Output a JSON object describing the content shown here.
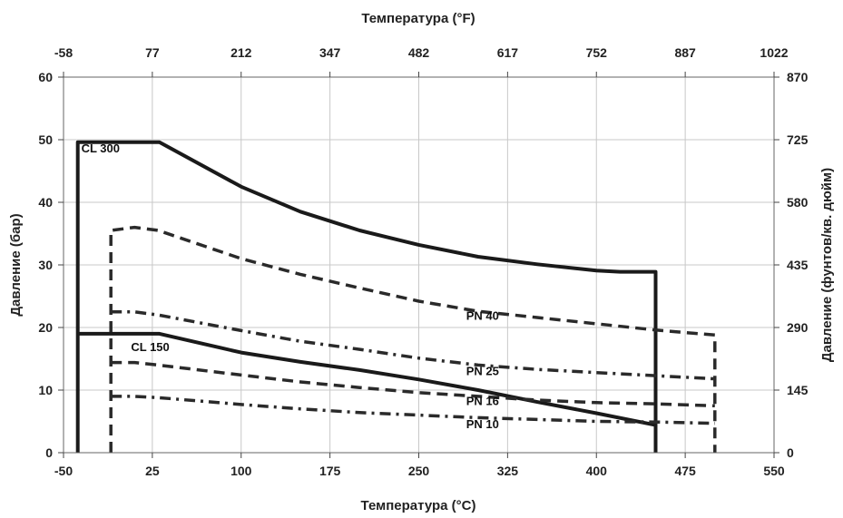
{
  "chart_data": {
    "type": "line",
    "x_bottom": {
      "label": "Температура (°C)",
      "min": -50,
      "max": 550,
      "ticks": [
        -50,
        25,
        100,
        175,
        250,
        325,
        400,
        475,
        550
      ]
    },
    "x_top": {
      "label": "Температура (°F)",
      "ticks": [
        "-58",
        "77",
        "212",
        "347",
        "482",
        "617",
        "752",
        "887",
        "1022"
      ]
    },
    "y_left": {
      "label": "Давление (бар)",
      "min": 0,
      "max": 60,
      "ticks": [
        0,
        10,
        20,
        30,
        40,
        50,
        60
      ]
    },
    "y_right": {
      "label": "Давление (фунтов/кв. дюйм)",
      "ticks": [
        "0",
        "145",
        "290",
        "435",
        "580",
        "725",
        "870"
      ]
    },
    "grid": true,
    "series": [
      {
        "name": "CL 300",
        "style": "solid",
        "color": "#1a1a1a",
        "x": [
          -38,
          -38,
          31,
          100,
          150,
          200,
          250,
          300,
          350,
          400,
          420,
          450,
          450
        ],
        "y": [
          0,
          49.6,
          49.6,
          42.5,
          38.5,
          35.5,
          33.2,
          31.3,
          30.1,
          29.1,
          28.9,
          28.9,
          0
        ]
      },
      {
        "name": "CL 150",
        "style": "solid",
        "color": "#1a1a1a",
        "x": [
          -38,
          31,
          100,
          150,
          200,
          250,
          300,
          350,
          400,
          450
        ],
        "y": [
          19,
          19,
          16,
          14.5,
          13.2,
          11.7,
          10,
          8.1,
          6.3,
          4.4
        ]
      },
      {
        "name": "PN 40",
        "style": "dash",
        "color": "#2a2a2a",
        "x": [
          -10,
          -10,
          10,
          30,
          100,
          150,
          200,
          250,
          300,
          350,
          400,
          450,
          500,
          500
        ],
        "y": [
          0,
          35.5,
          36,
          35.5,
          31,
          28.5,
          26.3,
          24.2,
          22.6,
          21.6,
          20.6,
          19.6,
          18.8,
          0
        ]
      },
      {
        "name": "PN 25",
        "style": "dashdot",
        "color": "#2a2a2a",
        "x": [
          -10,
          10,
          30,
          100,
          150,
          200,
          250,
          300,
          350,
          400,
          450,
          500
        ],
        "y": [
          22.5,
          22.5,
          22,
          19.5,
          17.8,
          16.5,
          15.1,
          14,
          13.3,
          12.8,
          12.3,
          11.8
        ]
      },
      {
        "name": "PN 16",
        "style": "dash",
        "color": "#2a2a2a",
        "x": [
          -10,
          10,
          30,
          100,
          150,
          200,
          250,
          300,
          350,
          400,
          450,
          500
        ],
        "y": [
          14.4,
          14.4,
          14,
          12.4,
          11.3,
          10.4,
          9.6,
          9,
          8.4,
          8,
          7.8,
          7.5
        ]
      },
      {
        "name": "PN 10",
        "style": "dashdot",
        "color": "#2a2a2a",
        "x": [
          -10,
          10,
          30,
          100,
          150,
          200,
          250,
          300,
          350,
          400,
          450,
          500
        ],
        "y": [
          9,
          9,
          8.8,
          7.7,
          7,
          6.4,
          6,
          5.6,
          5.3,
          5,
          4.9,
          4.7
        ]
      }
    ],
    "annotations": [
      {
        "text": "CL 300",
        "x": -35,
        "y": 48
      },
      {
        "text": "CL 150",
        "x": 7,
        "y": 16.2
      },
      {
        "text": "PN 40",
        "x": 290,
        "y": 21.2
      },
      {
        "text": "PN 25",
        "x": 290,
        "y": 12.4
      },
      {
        "text": "PN 16",
        "x": 290,
        "y": 7.6
      },
      {
        "text": "PN 10",
        "x": 290,
        "y": 3.9
      }
    ]
  }
}
